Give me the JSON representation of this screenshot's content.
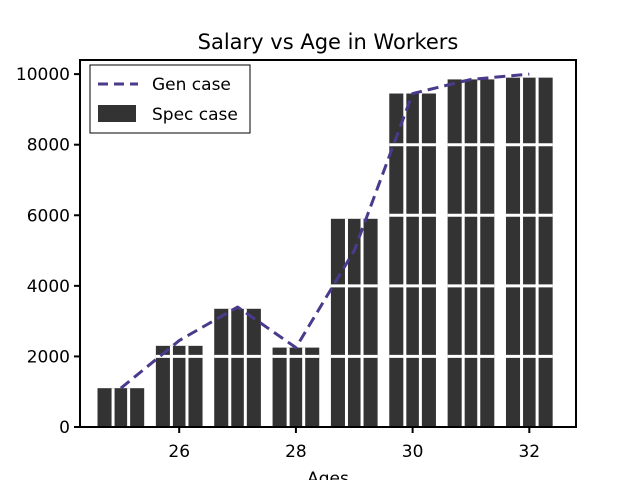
{
  "chart_data": {
    "type": "bar",
    "title": "Salary vs Age in Workers",
    "xlabel": "Ages",
    "ylabel": "",
    "x": [
      25,
      26,
      27,
      28,
      29,
      30,
      31,
      32
    ],
    "bar_series": {
      "name": "Spec case",
      "values": [
        1100,
        2300,
        3350,
        2250,
        5900,
        9450,
        9850,
        9900
      ]
    },
    "line_series": {
      "name": "Gen case",
      "values": [
        1100,
        2450,
        3400,
        2250,
        5000,
        9450,
        9850,
        10000
      ]
    },
    "xlim": [
      24.3,
      32.8
    ],
    "ylim": [
      0,
      10400
    ],
    "xticks": [
      26,
      28,
      30,
      32
    ],
    "yticks": [
      0,
      2000,
      4000,
      6000,
      8000,
      10000
    ],
    "legend_position": "upper-left",
    "grid": false,
    "colors": {
      "bar": "#333333",
      "line": "#4b3a8c",
      "frame": "#000000",
      "background": "#ffffff"
    }
  }
}
